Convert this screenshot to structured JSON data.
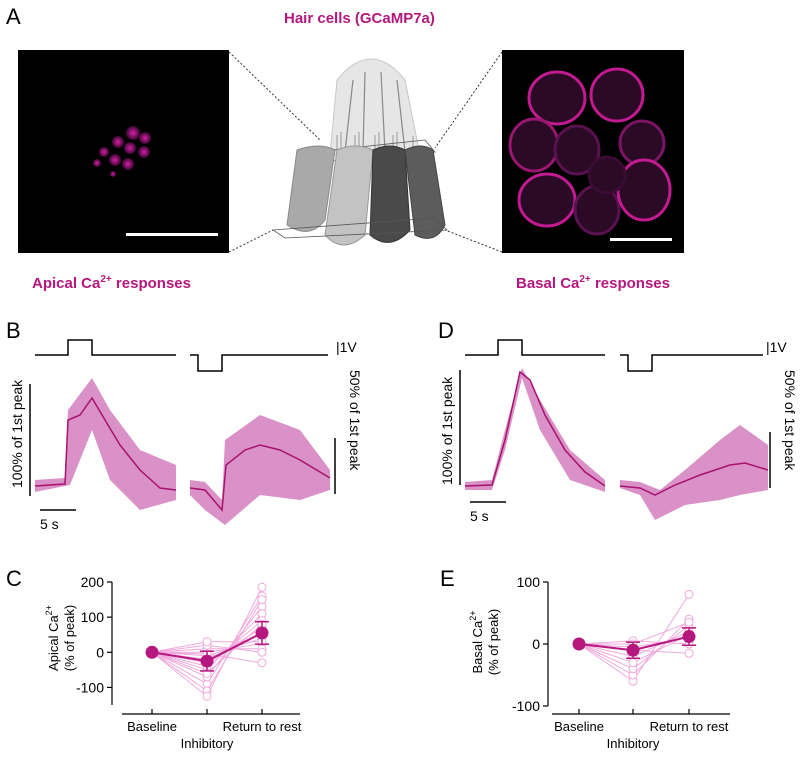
{
  "panel_labels": {
    "a": "A",
    "b": "B",
    "c": "C",
    "d": "D",
    "e": "E"
  },
  "panel_a": {
    "title": "Hair cells (GCaMP7a)",
    "apical_label": "Apical Ca",
    "basal_label": "Basal Ca",
    "superscript": "2+",
    "responses_suffix": " responses"
  },
  "panel_b": {
    "voltage_scale": "|1V",
    "time_scale": "5 s",
    "left_scale_label": "100% of 1st peak",
    "right_scale_label": "50% of 1st peak"
  },
  "panel_d": {
    "voltage_scale": "|1V",
    "time_scale": "5 s",
    "left_scale_label": "100% of 1st peak",
    "right_scale_label": "50% of 1st peak"
  },
  "colors": {
    "accent": "#b5177f",
    "band": "#d991c8",
    "light": "#f0a8dc"
  },
  "chart_data": [
    {
      "panel": "C",
      "type": "scatter",
      "ylabel_line1": "Apical Ca",
      "ylabel_sup": "2+",
      "ylabel_line2": "(% of peak)",
      "categories": [
        "Baseline",
        "Inhibitory",
        "Return to rest"
      ],
      "yticks": [
        200,
        100,
        0,
        -100
      ],
      "ylim": [
        -150,
        200
      ],
      "mean": [
        0,
        -25,
        55
      ],
      "error": [
        0,
        28,
        32
      ],
      "individual": [
        [
          0,
          -90,
          160
        ],
        [
          0,
          -70,
          130
        ],
        [
          0,
          -50,
          110
        ],
        [
          0,
          -40,
          90
        ],
        [
          0,
          -30,
          70
        ],
        [
          0,
          -20,
          55
        ],
        [
          0,
          -10,
          40
        ],
        [
          0,
          0,
          25
        ],
        [
          0,
          10,
          10
        ],
        [
          0,
          -60,
          80
        ],
        [
          0,
          -110,
          150
        ],
        [
          0,
          -125,
          185
        ],
        [
          0,
          20,
          0
        ],
        [
          0,
          -5,
          -30
        ],
        [
          0,
          30,
          30
        ]
      ]
    },
    {
      "panel": "E",
      "type": "scatter",
      "ylabel_line1": "Basal Ca",
      "ylabel_sup": "2+",
      "ylabel_line2": "(% of peak)",
      "categories": [
        "Baseline",
        "Inhibitory",
        "Return to rest"
      ],
      "yticks": [
        100,
        0,
        -100
      ],
      "ylim": [
        -100,
        100
      ],
      "mean": [
        0,
        -10,
        12
      ],
      "error": [
        0,
        13,
        14
      ],
      "individual": [
        [
          0,
          -60,
          80
        ],
        [
          0,
          -50,
          40
        ],
        [
          0,
          -40,
          30
        ],
        [
          0,
          -20,
          20
        ],
        [
          0,
          -5,
          10
        ],
        [
          0,
          5,
          0
        ],
        [
          0,
          -10,
          -15
        ],
        [
          0,
          -30,
          15
        ],
        [
          0,
          0,
          35
        ]
      ]
    }
  ]
}
